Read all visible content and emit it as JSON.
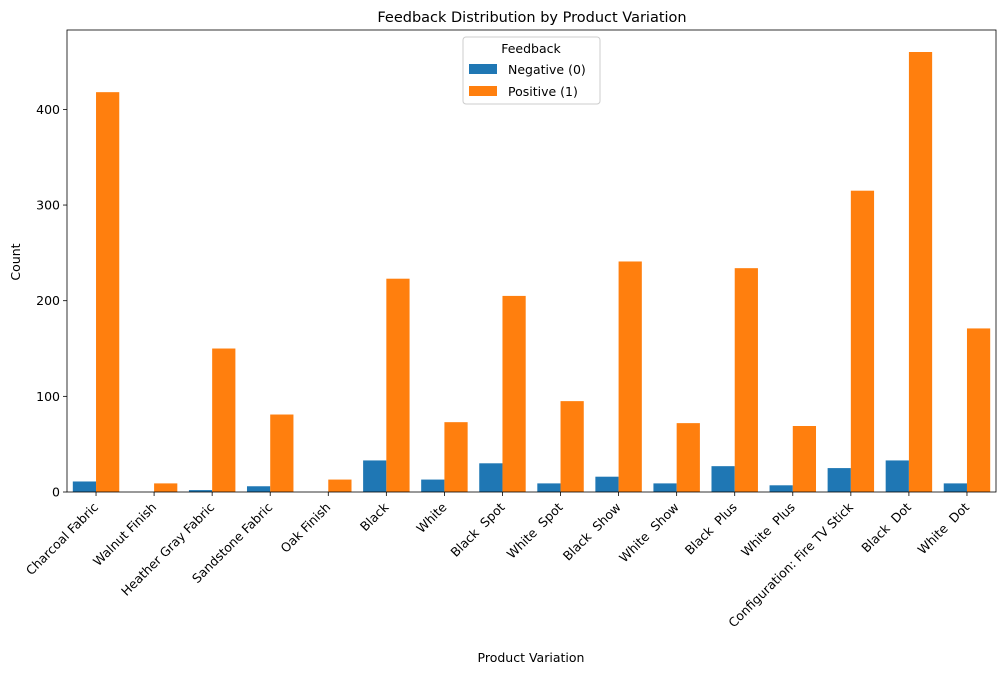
{
  "chart_data": {
    "type": "bar",
    "title": "Feedback Distribution by Product Variation",
    "xlabel": "Product Variation",
    "ylabel": "Count",
    "ylim": [
      0,
      483
    ],
    "yticks": [
      "0",
      "100",
      "200",
      "300",
      "400"
    ],
    "categories": [
      "Charcoal Fabric",
      "Walnut Finish",
      "Heather Gray Fabric",
      "Sandstone Fabric",
      "Oak Finish",
      "Black",
      "White",
      "Black  Spot",
      "White  Spot",
      "Black  Show",
      "White  Show",
      "Black  Plus",
      "White  Plus",
      "Configuration: Fire TV Stick",
      "Black  Dot",
      "White  Dot"
    ],
    "series": [
      {
        "name": "Negative (0)",
        "color": "#1f77b4",
        "values": [
          11,
          0,
          2,
          6,
          0,
          33,
          13,
          30,
          9,
          16,
          9,
          27,
          7,
          25,
          33,
          9
        ]
      },
      {
        "name": "Positive (1)",
        "color": "#ff7f0e",
        "values": [
          418,
          9,
          150,
          81,
          13,
          223,
          73,
          205,
          95,
          241,
          72,
          234,
          69,
          315,
          460,
          171
        ]
      }
    ],
    "legend": {
      "title": "Feedback",
      "position": "top-center"
    },
    "grid": false
  }
}
